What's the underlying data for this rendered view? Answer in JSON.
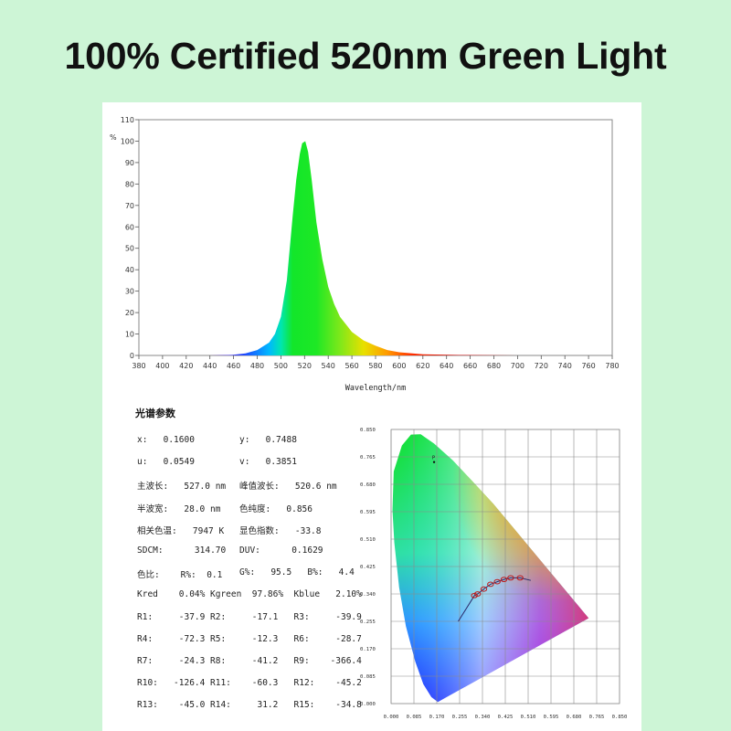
{
  "headline": "100% Certified 520nm Green Light",
  "colors": {
    "background": "#cdf5d6",
    "panel": "#ffffff",
    "curve_peak": "#22e640",
    "frame": "#7a7a7a"
  },
  "chart_data": [
    {
      "type": "area",
      "title": "",
      "xlabel": "Wavelength/nm",
      "ylabel": "%",
      "xlim": [
        380,
        780
      ],
      "ylim": [
        0,
        110
      ],
      "x_ticks": [
        380,
        400,
        420,
        440,
        460,
        480,
        500,
        520,
        540,
        560,
        580,
        600,
        620,
        640,
        660,
        680,
        700,
        720,
        740,
        760,
        780
      ],
      "y_ticks": [
        0,
        10,
        20,
        30,
        40,
        50,
        60,
        70,
        80,
        90,
        100,
        110
      ],
      "grid": false,
      "x": [
        380,
        440,
        460,
        470,
        480,
        490,
        495,
        500,
        505,
        510,
        513,
        516,
        518,
        520.6,
        523,
        526,
        530,
        535,
        540,
        545,
        550,
        560,
        570,
        580,
        590,
        600,
        620,
        650,
        700,
        780
      ],
      "y": [
        0,
        0,
        0.3,
        1,
        2.5,
        6,
        10,
        18,
        35,
        65,
        82,
        94,
        99,
        100,
        95,
        82,
        62,
        45,
        32,
        24,
        18,
        11,
        7,
        4.5,
        2.5,
        1.5,
        0.5,
        0.2,
        0,
        0
      ]
    },
    {
      "type": "scatter",
      "title": "",
      "x_ticks": [
        "0.000",
        "0.085",
        "0.170",
        "0.255",
        "0.340",
        "0.425",
        "0.510",
        "0.595",
        "0.680",
        "0.765",
        "0.850"
      ],
      "y_ticks": [
        "0.000",
        "0.085",
        "0.170",
        "0.255",
        "0.340",
        "0.425",
        "0.510",
        "0.595",
        "0.680",
        "0.765",
        "0.850"
      ],
      "xlim": [
        0,
        0.85
      ],
      "ylim": [
        0,
        0.85
      ],
      "grid": true,
      "point_label": "P",
      "point": {
        "x": 0.16,
        "y": 0.7488
      },
      "planckian_markers": [
        {
          "x": 0.31,
          "y": 0.335
        },
        {
          "x": 0.322,
          "y": 0.34
        },
        {
          "x": 0.345,
          "y": 0.355
        },
        {
          "x": 0.37,
          "y": 0.37
        },
        {
          "x": 0.395,
          "y": 0.378
        },
        {
          "x": 0.42,
          "y": 0.385
        },
        {
          "x": 0.445,
          "y": 0.39
        },
        {
          "x": 0.48,
          "y": 0.39
        }
      ]
    }
  ],
  "params": {
    "title": "光谱参数",
    "rows": [
      [
        "x:   0.1600",
        "y:   0.7488"
      ],
      [
        "u:   0.0549",
        "v:   0.3851"
      ],
      [
        "主波长:   527.0 nm",
        "峰值波长:   520.6 nm"
      ],
      [
        "半波宽:   28.0 nm",
        "色纯度:   0.856"
      ],
      [
        "相关色温:   7947 K",
        "显色指数:   -33.8"
      ],
      [
        "SDCM:      314.70",
        "DUV:      0.1629"
      ],
      [
        "色比:    R%:  0.1",
        "G%:   95.5   B%:   4.4"
      ],
      [
        "Kred    0.04%",
        "Kgreen  97.86%  Kblue   2.10%"
      ],
      [
        "R1:     -37.9",
        "R2:     -17.1   R3:     -39.9"
      ],
      [
        "R4:     -72.3",
        "R5:     -12.3   R6:     -28.7"
      ],
      [
        "R7:     -24.3",
        "R8:     -41.2   R9:    -366.4"
      ],
      [
        "R10:   -126.4",
        "R11:    -60.3   R12:    -45.2"
      ],
      [
        "R13:    -45.0",
        "R14:     31.2   R15:    -34.8"
      ]
    ]
  }
}
